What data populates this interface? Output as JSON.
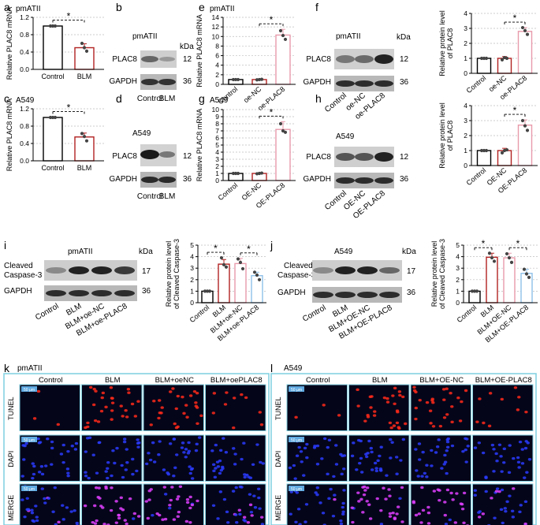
{
  "panels": {
    "a": {
      "letter": "a",
      "label": "pmATII"
    },
    "b": {
      "letter": "b",
      "label": "pmATII"
    },
    "c": {
      "letter": "c",
      "label": "A549"
    },
    "d": {
      "letter": "d",
      "label": "A549"
    },
    "e": {
      "letter": "e",
      "label": "pmATII"
    },
    "f": {
      "letter": "f",
      "label": "pmATII"
    },
    "g": {
      "letter": "g",
      "label": "A549"
    },
    "h": {
      "letter": "h",
      "label": "A549"
    },
    "i": {
      "letter": "i",
      "label": "pmATII"
    },
    "j": {
      "letter": "j",
      "label": "A549"
    },
    "k": {
      "letter": "k",
      "label": "pmATII"
    },
    "l": {
      "letter": "l",
      "label": "A549"
    }
  },
  "blots": {
    "kda": "kDa",
    "plac8": "PLAC8",
    "gapdh": "GAPDH",
    "cleaved_line1": "Cleaved",
    "cleaved_line2": "Caspase-3",
    "mw_12": "12",
    "mw_36": "36",
    "mw_17": "17"
  },
  "significance": "*",
  "micro": {
    "row_labels": [
      "TUNEL",
      "DAPI",
      "MERGE"
    ],
    "scale_bar": "50 μm",
    "k_cols": [
      "Control",
      "BLM",
      "BLM+oeNC",
      "BLM+oePLAC8"
    ],
    "l_cols": [
      "Control",
      "BLM",
      "BLM+OE-NC",
      "BLM+OE-PLAC8"
    ],
    "colors": {
      "frame": "#7ecfe0",
      "tunel": "#ff2a1a",
      "dapi": "#2a3cff",
      "merge": "#e040ff"
    }
  },
  "colors": {
    "black": "#000000",
    "red": "#b22222",
    "pink": "#e89aab",
    "blue": "#8fc0e8"
  },
  "chart_data": [
    {
      "panel": "a",
      "type": "bar",
      "ylabel": "Relative PLAC8 mRNA",
      "categories": [
        "Control",
        "BLM"
      ],
      "values": [
        1.0,
        0.5
      ],
      "points": [
        [
          1.0,
          1.0,
          1.0
        ],
        [
          0.6,
          0.5,
          0.42
        ]
      ],
      "sd": [
        0.01,
        0.09
      ],
      "ylim": [
        0,
        1.2
      ],
      "yticks": [
        "0.0",
        "0.4",
        "0.8",
        "1.2"
      ],
      "colors": [
        "#000000",
        "#b22222"
      ],
      "sig": [
        [
          0,
          1
        ]
      ]
    },
    {
      "panel": "c",
      "type": "bar",
      "ylabel": "Relative PLAC8 mRNA",
      "categories": [
        "Control",
        "BLM"
      ],
      "values": [
        1.0,
        0.55
      ],
      "points": [
        [
          1.0,
          1.0,
          1.0
        ],
        [
          0.63,
          0.56,
          0.46
        ]
      ],
      "sd": [
        0.01,
        0.09
      ],
      "ylim": [
        0,
        1.2
      ],
      "yticks": [
        "0.0",
        "0.4",
        "0.8",
        "1.2"
      ],
      "colors": [
        "#000000",
        "#b22222"
      ],
      "sig": [
        [
          0,
          1
        ]
      ]
    },
    {
      "panel": "e",
      "type": "bar",
      "ylabel": "Relative PLAC8 mRNA",
      "categories": [
        "Control",
        "oe-NC",
        "oe-PLAC8"
      ],
      "values": [
        1.0,
        1.0,
        10.3
      ],
      "points": [
        [
          1.0,
          1.0,
          1.0
        ],
        [
          0.95,
          1.0,
          1.05
        ],
        [
          11.2,
          10.2,
          9.4
        ]
      ],
      "sd": [
        0.05,
        0.08,
        1.2
      ],
      "ylim": [
        0,
        14
      ],
      "yticks": [
        "0",
        "2",
        "4",
        "6",
        "8",
        "10",
        "12",
        "14"
      ],
      "colors": [
        "#000000",
        "#b22222",
        "#e89aab"
      ],
      "sig": [
        [
          1,
          2
        ]
      ]
    },
    {
      "panel": "g",
      "type": "bar",
      "ylabel": "Relative PLAC8 mRNA",
      "categories": [
        "Control",
        "OE-NC",
        "OE-PLAC8"
      ],
      "values": [
        1.0,
        1.0,
        7.2
      ],
      "points": [
        [
          1.0,
          1.0,
          1.0
        ],
        [
          0.95,
          1.0,
          1.05
        ],
        [
          8.0,
          7.0,
          6.8
        ]
      ],
      "sd": [
        0.05,
        0.08,
        1.1
      ],
      "ylim": [
        0,
        10
      ],
      "yticks": [
        "0",
        "1",
        "2",
        "3",
        "4",
        "5",
        "6",
        "7",
        "8",
        "9",
        "10"
      ],
      "colors": [
        "#000000",
        "#b22222",
        "#e89aab"
      ],
      "sig": [
        [
          1,
          2
        ]
      ]
    },
    {
      "panel": "f",
      "type": "bar",
      "ylabel": "Relative protein level of PLAC8",
      "categories": [
        "Control",
        "oe-NC",
        "oe-PLAC8"
      ],
      "values": [
        1.0,
        1.0,
        2.8
      ],
      "points": [
        [
          1.0,
          1.0,
          1.0
        ],
        [
          0.9,
          1.05,
          1.0
        ],
        [
          3.05,
          2.85,
          2.6
        ]
      ],
      "sd": [
        0.01,
        0.12,
        0.25
      ],
      "ylim": [
        0,
        4
      ],
      "yticks": [
        "0",
        "1",
        "2",
        "3",
        "4"
      ],
      "colors": [
        "#000000",
        "#b22222",
        "#e89aab"
      ],
      "sig": [
        [
          1,
          2
        ]
      ]
    },
    {
      "panel": "h",
      "type": "bar",
      "ylabel": "Relative protein level of PLAC8",
      "categories": [
        "Control",
        "OE-NC",
        "OE-PLAC8"
      ],
      "values": [
        1.0,
        1.0,
        2.7
      ],
      "points": [
        [
          1.0,
          1.0,
          1.0
        ],
        [
          0.85,
          1.0,
          1.05
        ],
        [
          3.0,
          2.65,
          2.35
        ]
      ],
      "sd": [
        0.01,
        0.15,
        0.35
      ],
      "ylim": [
        0,
        4
      ],
      "yticks": [
        "0",
        "1",
        "2",
        "3",
        "4"
      ],
      "colors": [
        "#000000",
        "#b22222",
        "#e89aab"
      ],
      "sig": [
        [
          1,
          2
        ]
      ]
    },
    {
      "panel": "i",
      "type": "bar",
      "ylabel": "Relative protein level of Cleaved Caspase-3",
      "categories": [
        "Control",
        "BLM",
        "BLM+oe-NC",
        "BLM+oe-PLAC8"
      ],
      "values": [
        1.0,
        3.35,
        3.4,
        2.35
      ],
      "points": [
        [
          1.0,
          1.0,
          1.0
        ],
        [
          3.9,
          3.3,
          3.1
        ],
        [
          3.8,
          3.5,
          2.95
        ],
        [
          2.65,
          2.4,
          2.0
        ]
      ],
      "sd": [
        0.01,
        0.4,
        0.45,
        0.3
      ],
      "ylim": [
        0,
        5
      ],
      "yticks": [
        "0",
        "1",
        "2",
        "3",
        "4",
        "5"
      ],
      "colors": [
        "#000000",
        "#b22222",
        "#e89aab",
        "#8fc0e8"
      ],
      "sig": [
        [
          0,
          1
        ],
        [
          2,
          3
        ]
      ]
    },
    {
      "panel": "j",
      "type": "bar",
      "ylabel": "Relative protein level of Cleaved Caspase-3",
      "categories": [
        "Control",
        "BLM",
        "BLM+OE-NC",
        "BLM+OE-PLAC8"
      ],
      "values": [
        1.0,
        3.95,
        3.9,
        2.55
      ],
      "points": [
        [
          1.0,
          1.0,
          1.0
        ],
        [
          4.3,
          3.9,
          3.6
        ],
        [
          4.25,
          3.9,
          3.5
        ],
        [
          2.9,
          2.5,
          2.2
        ]
      ],
      "sd": [
        0.01,
        0.35,
        0.4,
        0.35
      ],
      "ylim": [
        0,
        5
      ],
      "yticks": [
        "0",
        "1",
        "2",
        "3",
        "4",
        "5"
      ],
      "colors": [
        "#000000",
        "#b22222",
        "#e89aab",
        "#8fc0e8"
      ],
      "sig": [
        [
          0,
          1
        ],
        [
          2,
          3
        ]
      ]
    }
  ]
}
